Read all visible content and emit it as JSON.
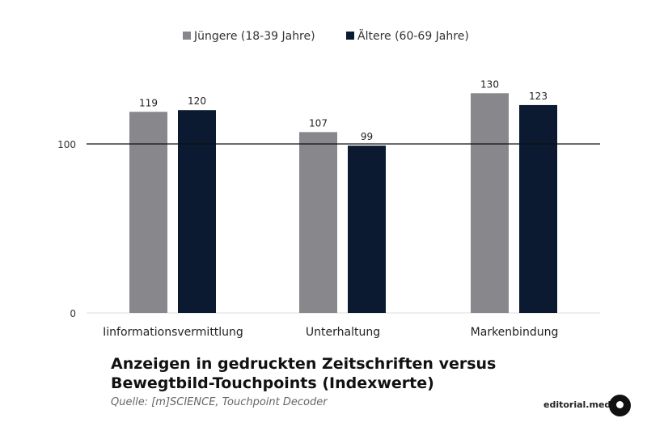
{
  "chart_data": {
    "type": "bar",
    "categories": [
      "Iinformationsvermittlung",
      "Unterhaltung",
      "Markenbindung"
    ],
    "series": [
      {
        "name": "Jüngere (18-39 Jahre)",
        "color": "#87878c",
        "values": [
          119,
          107,
          130
        ]
      },
      {
        "name": "Ältere (60-69 Jahre)",
        "color": "#0b1a30",
        "values": [
          120,
          99,
          123
        ]
      }
    ],
    "yticks": [
      0,
      100
    ],
    "ylim": [
      0,
      140
    ],
    "reference_line": 100,
    "legend": "top-center",
    "title": "Anzeigen in gedruckten Zeitschriften versus Bewegtbild-Touchpoints (Indexwerte)",
    "source": "Quelle: [m]SCIENCE, Touchpoint Decoder"
  },
  "brand": "editorial.media"
}
